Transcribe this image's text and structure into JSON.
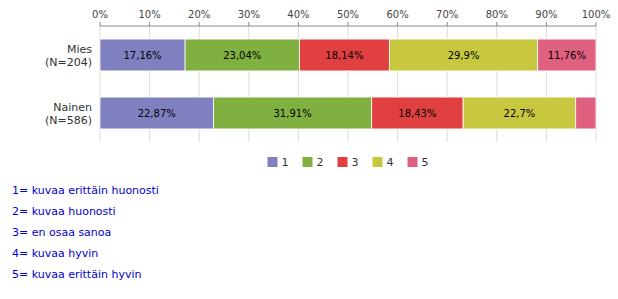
{
  "chart_data": {
    "type": "bar",
    "orientation": "horizontal",
    "stacked": true,
    "data_labels": true,
    "grid": true,
    "legend": "bottom",
    "categories": [
      "Mies\n(N=204)",
      "Nainen\n(N=586)"
    ],
    "series": [
      {
        "name": "1",
        "color": "#8080c0",
        "values": [
          17.16,
          22.87
        ],
        "value_labels": [
          "17,16%",
          "22,87%"
        ]
      },
      {
        "name": "2",
        "color": "#80b040",
        "values": [
          23.04,
          31.91
        ],
        "value_labels": [
          "23,04%",
          "31,91%"
        ]
      },
      {
        "name": "3",
        "color": "#e04040",
        "values": [
          18.14,
          18.43
        ],
        "value_labels": [
          "18,14%",
          "18,43%"
        ]
      },
      {
        "name": "4",
        "color": "#c8c840",
        "values": [
          29.9,
          22.7
        ],
        "value_labels": [
          "29,9%",
          "22,7%"
        ]
      },
      {
        "name": "5",
        "color": "#e06080",
        "values": [
          11.76,
          4.09
        ],
        "value_labels": [
          "11,76%",
          null
        ]
      }
    ],
    "xlim": [
      0,
      100
    ],
    "xticks": [
      {
        "value": 0,
        "label": "0%"
      },
      {
        "value": 10,
        "label": "10%"
      },
      {
        "value": 20,
        "label": "20%"
      },
      {
        "value": 30,
        "label": "30%"
      },
      {
        "value": 40,
        "label": "40%"
      },
      {
        "value": 50,
        "label": "50%"
      },
      {
        "value": 60,
        "label": "60%"
      },
      {
        "value": 70,
        "label": "70%"
      },
      {
        "value": 80,
        "label": "80%"
      },
      {
        "value": 90,
        "label": "90%"
      },
      {
        "value": 100,
        "label": "100%"
      }
    ],
    "annotations": [
      "1= kuvaa erittäin huonosti",
      "2= kuvaa huonosti",
      "3= en osaa sanoa",
      "4= kuvaa hyvin",
      "5= kuvaa erittäin hyvin"
    ]
  }
}
